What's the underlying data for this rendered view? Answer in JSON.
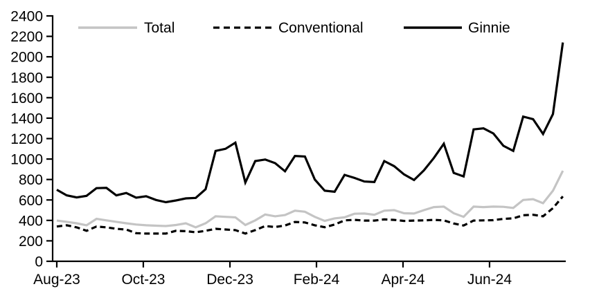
{
  "figure": {
    "background": "#ffffff",
    "axis_color": "#000000"
  },
  "chart_data": {
    "type": "line",
    "title": "",
    "xlabel": "",
    "ylabel": "",
    "grid": false,
    "legend_position": "top",
    "ylim": [
      0,
      2400
    ],
    "ytick_step": 200,
    "ytick_labels": [
      "0",
      "200",
      "400",
      "600",
      "800",
      "1000",
      "1200",
      "1400",
      "1600",
      "1800",
      "2000",
      "2200",
      "2400"
    ],
    "x_tick_labels": [
      "Aug-23",
      "Oct-23",
      "Dec-23",
      "Feb-24",
      "Apr-24",
      "Jun-24"
    ],
    "x_tick_point_positions": [
      0,
      8.72,
      17.45,
      26.17,
      34.89,
      43.61
    ],
    "n_points": 52,
    "x_unit": "week",
    "series": [
      {
        "name": "Total",
        "color": "#c4c4c4",
        "dash": "solid",
        "values": [
          398,
          386,
          372,
          352,
          415,
          400,
          386,
          372,
          360,
          352,
          348,
          345,
          355,
          372,
          332,
          372,
          440,
          435,
          430,
          355,
          400,
          458,
          440,
          452,
          495,
          485,
          435,
          395,
          420,
          430,
          465,
          467,
          455,
          495,
          500,
          470,
          467,
          500,
          530,
          535,
          470,
          435,
          535,
          530,
          535,
          533,
          522,
          600,
          608,
          568,
          690,
          885
        ]
      },
      {
        "name": "Conventional",
        "color": "#000000",
        "dash": "dashed",
        "values": [
          340,
          352,
          332,
          298,
          340,
          332,
          318,
          310,
          275,
          271,
          271,
          271,
          298,
          295,
          284,
          298,
          318,
          311,
          305,
          271,
          305,
          345,
          335,
          350,
          385,
          380,
          352,
          333,
          360,
          400,
          405,
          398,
          398,
          410,
          405,
          395,
          398,
          400,
          405,
          400,
          370,
          350,
          398,
          400,
          402,
          415,
          420,
          450,
          455,
          440,
          520,
          635
        ]
      },
      {
        "name": "Ginnie",
        "color": "#000000",
        "dash": "solid",
        "values": [
          700,
          645,
          625,
          640,
          715,
          718,
          645,
          668,
          622,
          636,
          600,
          578,
          595,
          615,
          620,
          705,
          1080,
          1100,
          1160,
          770,
          980,
          995,
          960,
          880,
          1030,
          1025,
          800,
          690,
          680,
          845,
          815,
          780,
          775,
          980,
          930,
          850,
          795,
          890,
          1010,
          1150,
          865,
          830,
          1290,
          1300,
          1250,
          1130,
          1080,
          1415,
          1390,
          1245,
          1440,
          2140
        ]
      }
    ]
  }
}
